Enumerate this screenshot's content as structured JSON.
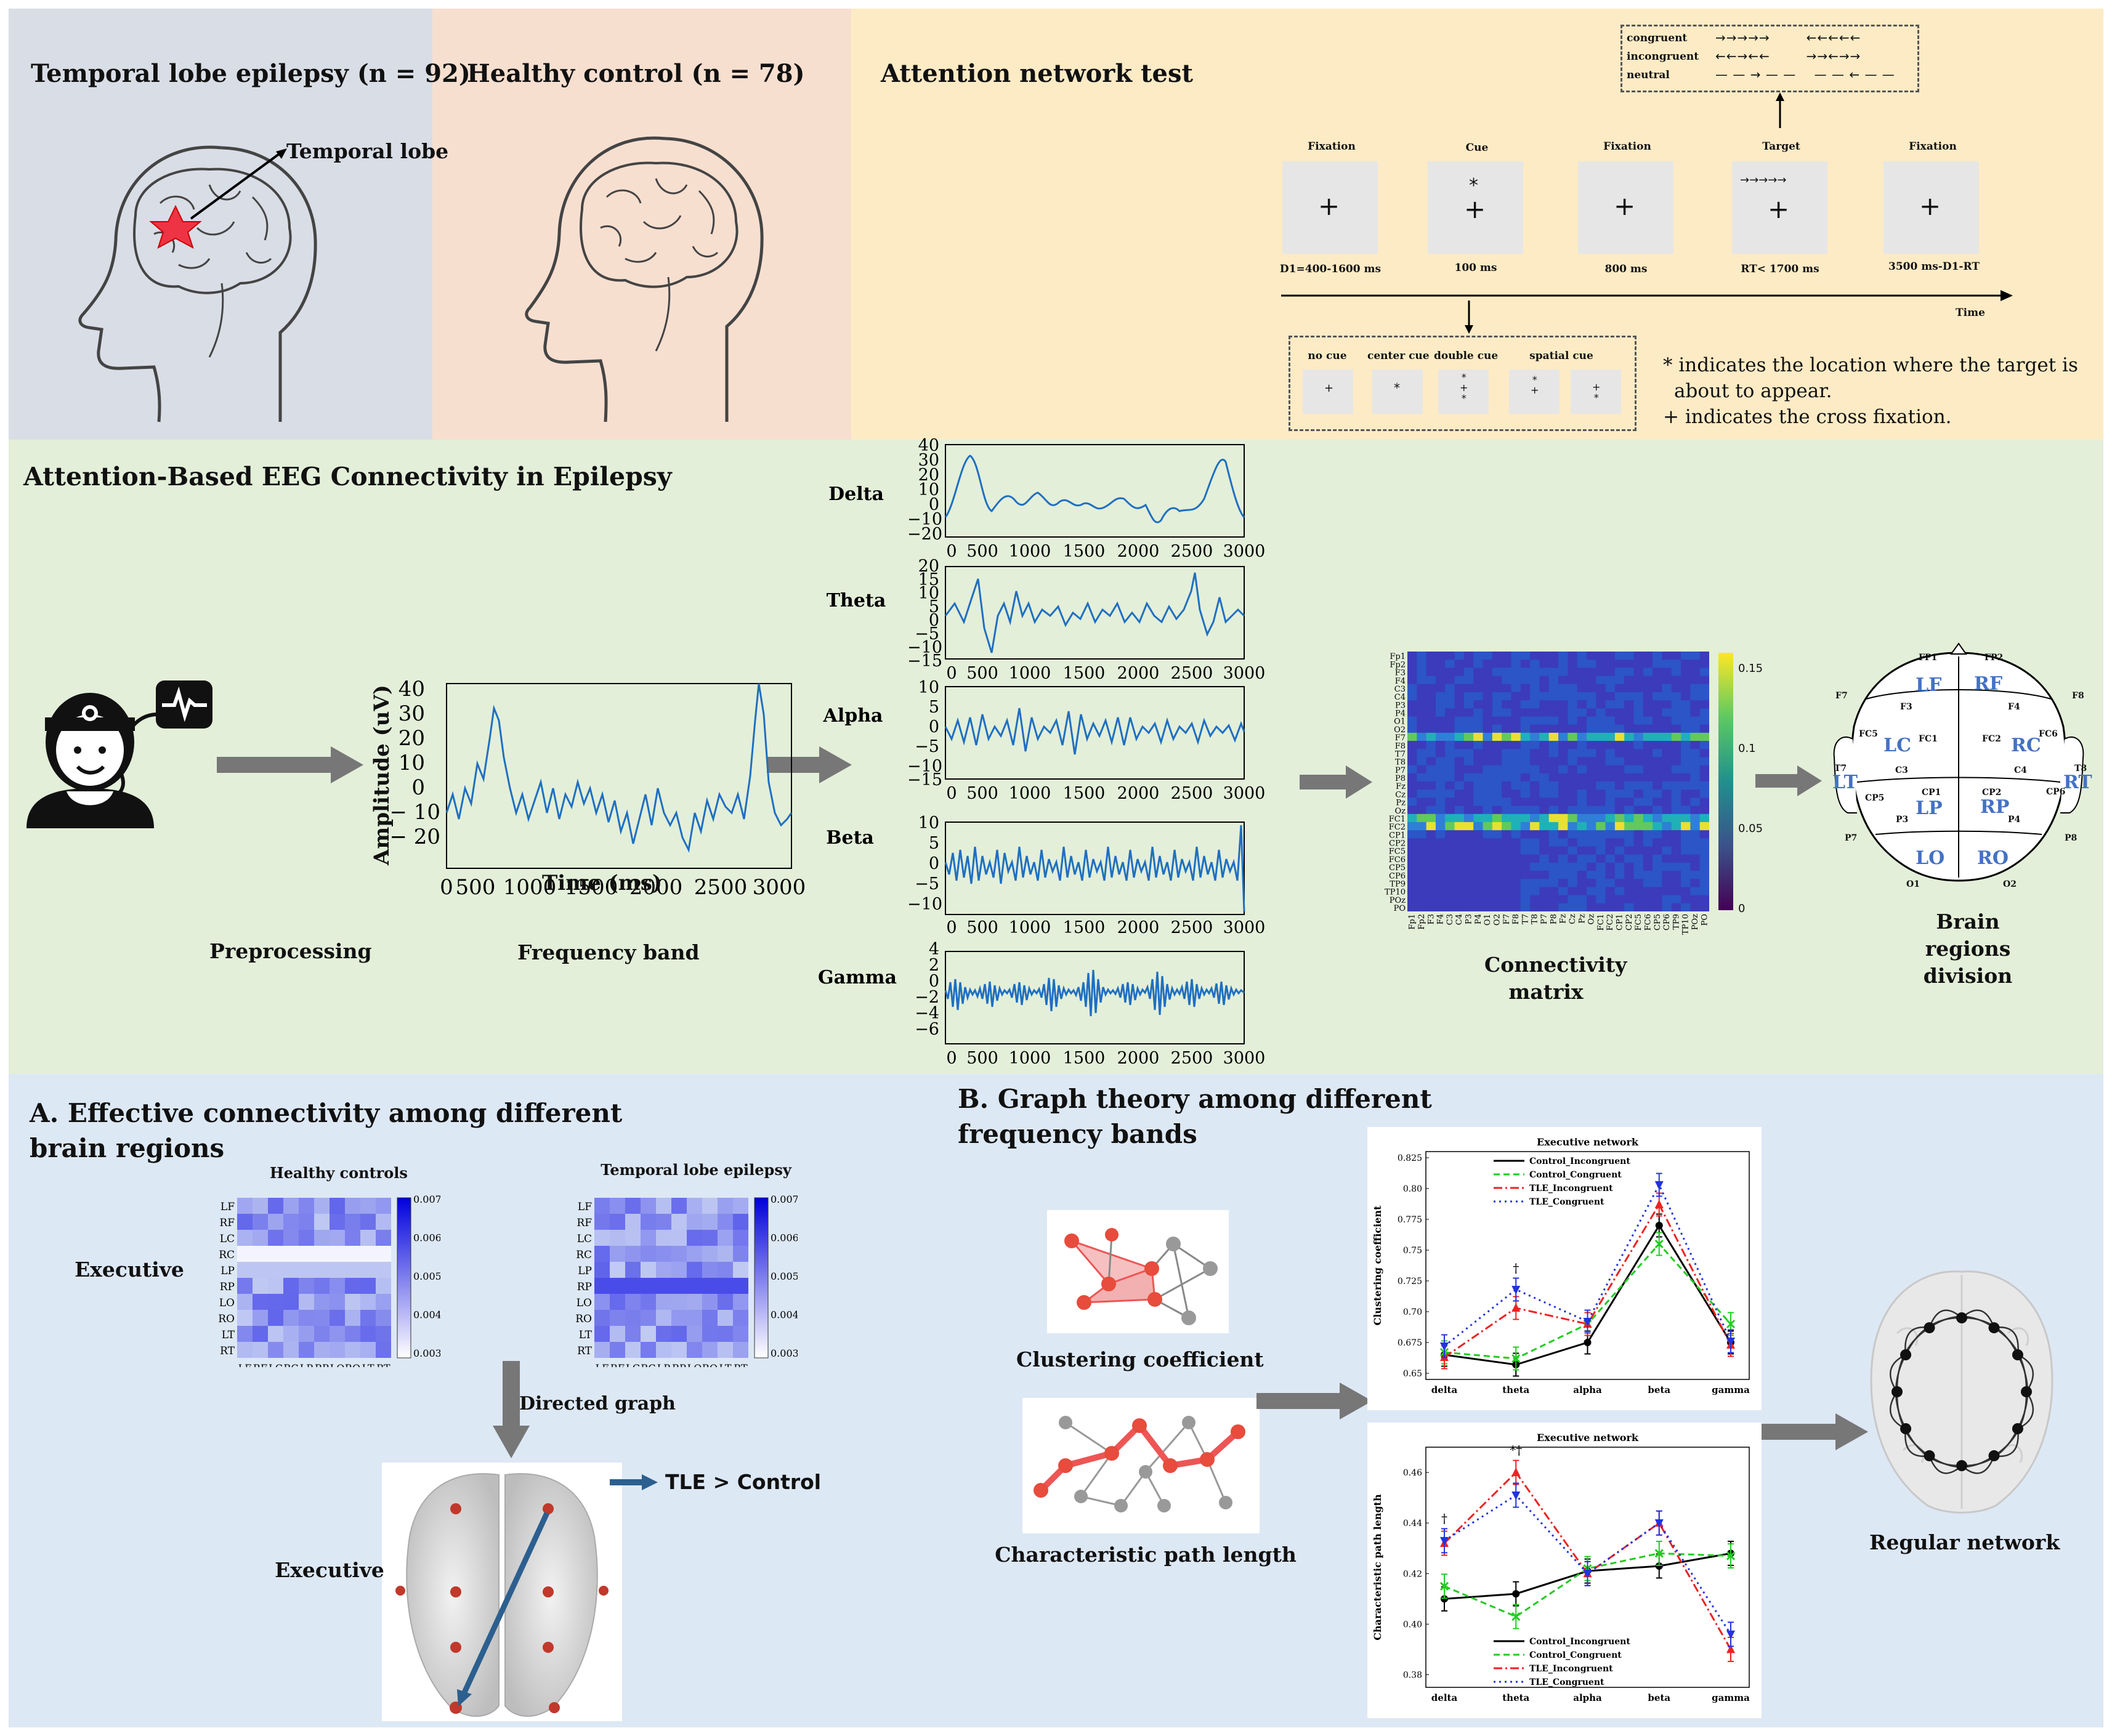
{
  "top": {
    "tle": {
      "title": "Temporal lobe epilepsy (n = 92)",
      "annotation": "Temporal lobe"
    },
    "hc": {
      "title": "Healthy control (n = 78)"
    },
    "ant": {
      "title": "Attention network test",
      "stimuli": [
        {
          "label": "Fixation",
          "duration": "D1=400-1600 ms"
        },
        {
          "label": "Cue",
          "duration": "100 ms"
        },
        {
          "label": "Fixation",
          "duration": "800 ms"
        },
        {
          "label": "Target",
          "duration": "RT< 1700 ms"
        },
        {
          "label": "Fixation",
          "duration": "3500 ms-D1-RT"
        }
      ],
      "time_label": "Time",
      "flankers": {
        "congruent": "congruent",
        "incongruent": "incongruent",
        "neutral": "neutral"
      },
      "cues": [
        "no cue",
        "center cue",
        "double cue",
        "spatial cue"
      ],
      "note1": "* indicates the location where the target is",
      "note2": "about to appear.",
      "note3": "+ indicates the cross fixation."
    }
  },
  "mid": {
    "title": "Attention-Based EEG Connectivity in Epilepsy",
    "preprocessing": "Preprocessing",
    "frequency_band": "Frequency band",
    "ylabel": "Amplitude (uV)",
    "xlabel": "Time (ms)",
    "bands": [
      "Delta",
      "Theta",
      "Alpha",
      "Beta",
      "Gamma"
    ],
    "connectivity_matrix": "Connectivity matrix",
    "brain_regions": "Brain regions division"
  },
  "bottom": {
    "a_title_1": "A. Effective connectivity among different",
    "a_title_2": "brain regions",
    "hc_label": "Healthy controls",
    "tle_label": "Temporal lobe epilepsy",
    "executive": "Executive",
    "directed_graph": "Directed graph",
    "tle_gt_control": "TLE > Control",
    "b_title_1": "B. Graph theory among different",
    "b_title_2": "frequency bands",
    "clustering": "Clustering coefficient",
    "path_length": "Characteristic path length",
    "regular_network": "Regular network"
  },
  "chart_data": [
    {
      "type": "line",
      "title": "Executive network",
      "ylabel": "Clustering coefficient",
      "categories": [
        "delta",
        "theta",
        "alpha",
        "beta",
        "gamma"
      ],
      "ylim": [
        0.645,
        0.83
      ],
      "yticks": [
        0.65,
        0.675,
        0.7,
        0.725,
        0.75,
        0.775,
        0.8,
        0.825
      ],
      "annotations": [
        {
          "category": "theta",
          "text": "†"
        }
      ],
      "series": [
        {
          "name": "Control_Incongruent",
          "color": "#000000",
          "values": [
            0.665,
            0.657,
            0.675,
            0.77,
            0.675
          ]
        },
        {
          "name": "Control_Congruent",
          "color": "#22cc22",
          "values": [
            0.667,
            0.662,
            0.69,
            0.755,
            0.69
          ]
        },
        {
          "name": "TLE_Incongruent",
          "color": "#ee2222",
          "values": [
            0.663,
            0.703,
            0.69,
            0.787,
            0.673
          ]
        },
        {
          "name": "TLE_Congruent",
          "color": "#2233dd",
          "values": [
            0.672,
            0.718,
            0.692,
            0.803,
            0.676
          ]
        }
      ]
    },
    {
      "type": "line",
      "title": "Executive network",
      "ylabel": "Characteristic path length",
      "categories": [
        "delta",
        "theta",
        "alpha",
        "beta",
        "gamma"
      ],
      "ylim": [
        0.375,
        0.47
      ],
      "yticks": [
        0.38,
        0.4,
        0.42,
        0.44,
        0.46
      ],
      "annotations": [
        {
          "category": "delta",
          "text": "†"
        },
        {
          "category": "theta",
          "text": "*†"
        }
      ],
      "series": [
        {
          "name": "Control_Incongruent",
          "color": "#000000",
          "values": [
            0.41,
            0.412,
            0.421,
            0.423,
            0.428
          ]
        },
        {
          "name": "Control_Congruent",
          "color": "#22cc22",
          "values": [
            0.415,
            0.403,
            0.422,
            0.428,
            0.427
          ]
        },
        {
          "name": "TLE_Incongruent",
          "color": "#ee2222",
          "values": [
            0.432,
            0.46,
            0.42,
            0.44,
            0.39
          ]
        },
        {
          "name": "TLE_Congruent",
          "color": "#2233dd",
          "values": [
            0.433,
            0.451,
            0.42,
            0.44,
            0.396
          ]
        }
      ]
    }
  ]
}
